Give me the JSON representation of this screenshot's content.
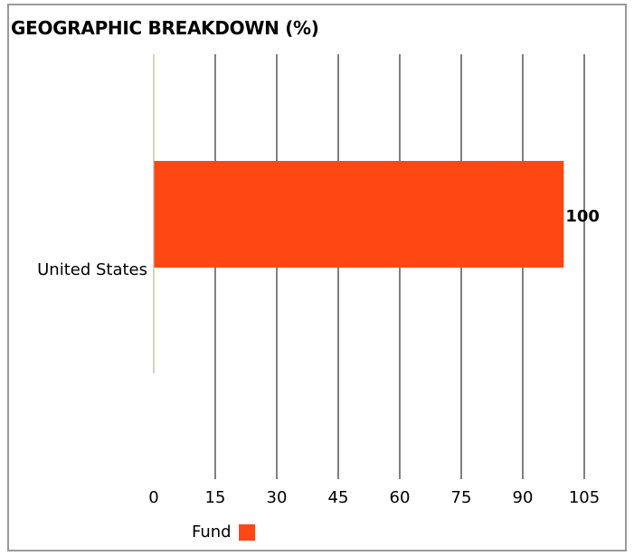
{
  "chart_data": {
    "type": "bar",
    "orientation": "horizontal",
    "title": "GEOGRAPHIC BREAKDOWN (%)",
    "categories": [
      "United States"
    ],
    "series": [
      {
        "name": "Fund",
        "values": [
          100
        ],
        "color": "#FF4713"
      }
    ],
    "value_labels": [
      "100"
    ],
    "xlim": [
      0,
      105
    ],
    "xticks": [
      0,
      15,
      30,
      45,
      60,
      75,
      90,
      105
    ],
    "xtick_labels": [
      "0",
      "15",
      "30",
      "45",
      "60",
      "75",
      "90",
      "105"
    ],
    "grid": "vertical",
    "legend": "bottom-left"
  }
}
